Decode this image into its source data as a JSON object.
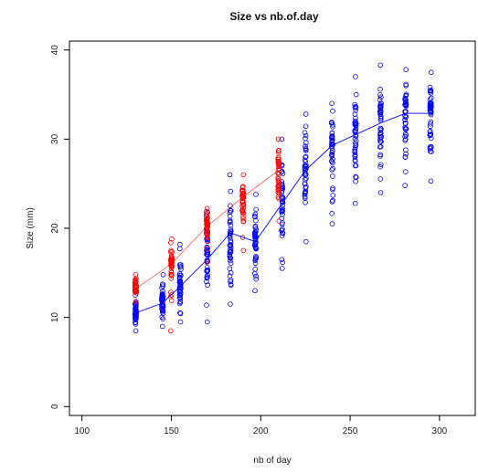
{
  "chart_data": {
    "type": "scatter",
    "title": "Size vs nb.of.day",
    "xlabel": "nb of day",
    "ylabel": "Size (mm)",
    "xlim": [
      93,
      320
    ],
    "ylim": [
      -1,
      41
    ],
    "xticks": [
      "100",
      "150",
      "200",
      "250",
      "300"
    ],
    "yticks": [
      "0",
      "10",
      "20",
      "30",
      "40"
    ],
    "grid": false,
    "legend": "none",
    "point_style": "open-circle",
    "series": [
      {
        "color": "#0000ff",
        "x": [
          130,
          145,
          155,
          170,
          183,
          197,
          212,
          225,
          240,
          253,
          267,
          281,
          295
        ],
        "ymean": [
          10.5,
          11.6,
          13.5,
          16.5,
          19.5,
          18.5,
          22.8,
          26.5,
          29.3,
          30.5,
          31.8,
          32.9,
          32.9
        ],
        "ymin": [
          8.5,
          9.0,
          9.5,
          9.5,
          11.5,
          13.0,
          15.5,
          18.5,
          20.5,
          22.8,
          24.0,
          24.8,
          25.3
        ],
        "ymax": [
          12.5,
          14.8,
          18.2,
          21.8,
          26.0,
          23.8,
          30.0,
          32.8,
          34.0,
          37.0,
          38.3,
          37.8,
          37.5
        ]
      },
      {
        "color": "#ff0000",
        "x": [
          130,
          150,
          170,
          190,
          210
        ],
        "ymean": [
          13.2,
          16.0,
          20.2,
          23.5,
          26.5
        ],
        "ymin": [
          11.8,
          8.5,
          16.2,
          17.5,
          20.8
        ],
        "ymax": [
          14.8,
          18.8,
          22.2,
          26.0,
          30.0
        ]
      }
    ]
  }
}
